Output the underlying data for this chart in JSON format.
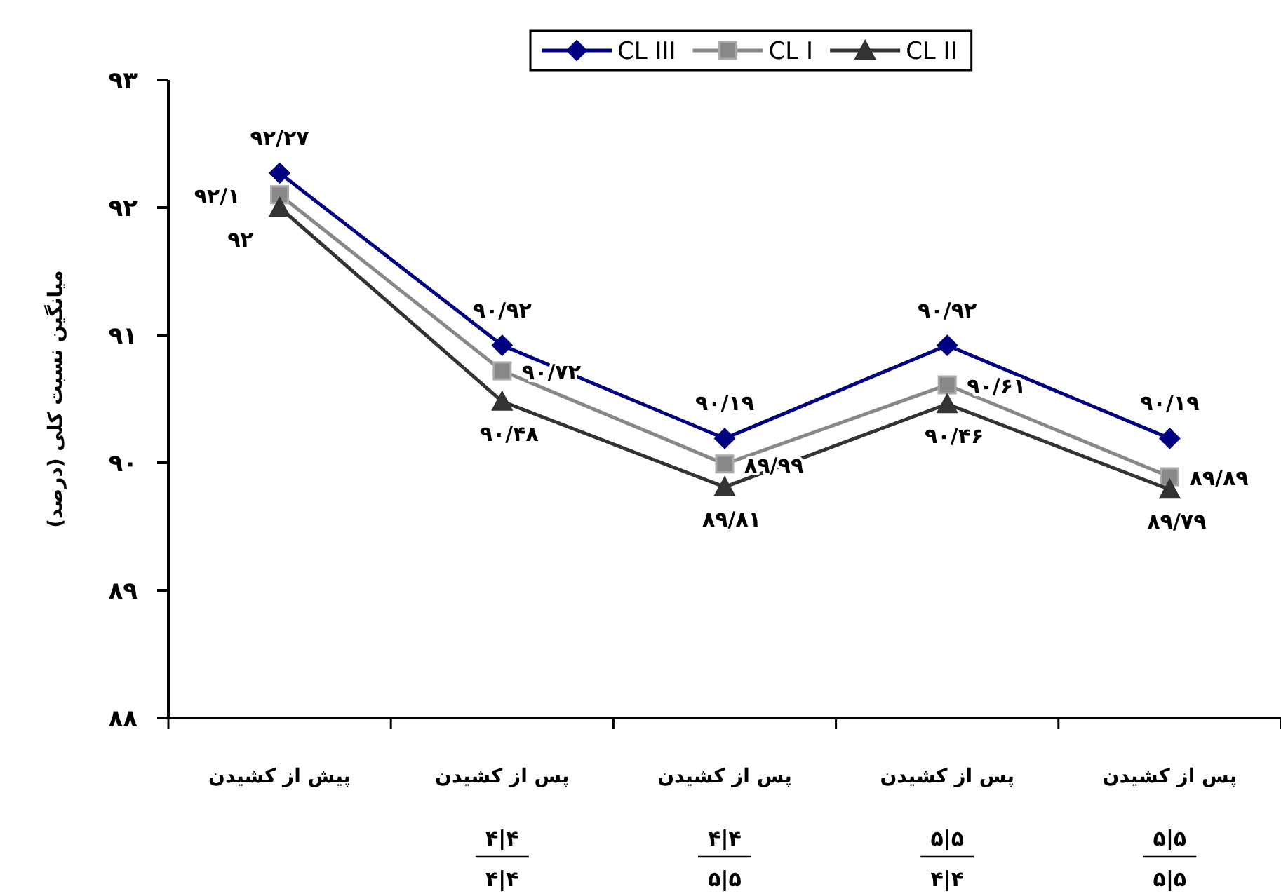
{
  "chart_data": {
    "type": "line",
    "ylabel": "میانگین نسبت کلی (درصد)",
    "categories": [
      "پیش از کشیدن",
      "پس از کشیدن\n۴|۴\n۴|۴",
      "پس از کشیدن\n۴|۴\n۵|۵",
      "پس از کشیدن\n۵|۵\n۴|۴",
      "پس از کشیدن\n۵|۵\n۵|۵"
    ],
    "series": [
      {
        "name": "CL III",
        "color": "#000080",
        "marker": "diamond",
        "values": [
          92.27,
          90.92,
          90.19,
          90.92,
          90.19
        ],
        "value_labels": [
          "۹۲/۲۷",
          "۹۰/۹۲",
          "۹۰/۱۹",
          "۹۰/۹۲",
          "۹۰/۱۹"
        ]
      },
      {
        "name": "CL I",
        "color": "#888888",
        "marker": "square",
        "values": [
          92.1,
          90.72,
          89.99,
          90.61,
          89.89
        ],
        "value_labels": [
          "۹۲/۱",
          "۹۰/۷۲",
          "۸۹/۹۹",
          "۹۰/۶۱",
          "۸۹/۸۹"
        ]
      },
      {
        "name": "CL II",
        "color": "#333333",
        "marker": "triangle",
        "values": [
          92,
          90.48,
          89.81,
          90.46,
          89.79
        ],
        "value_labels": [
          "۹۲",
          "۹۰/۴۸",
          "۸۹/۸۱",
          "۹۰/۴۶",
          "۸۹/۷۹"
        ]
      }
    ],
    "ylim": [
      88,
      93
    ],
    "yticks": [
      {
        "value": 88,
        "label": "۸۸"
      },
      {
        "value": 89,
        "label": "۸۹"
      },
      {
        "value": 90,
        "label": "۹۰"
      },
      {
        "value": 91,
        "label": "۹۱"
      },
      {
        "value": 92,
        "label": "۹۲"
      },
      {
        "value": 93,
        "label": "۹۳"
      }
    ],
    "legend": "top",
    "grid": false
  }
}
